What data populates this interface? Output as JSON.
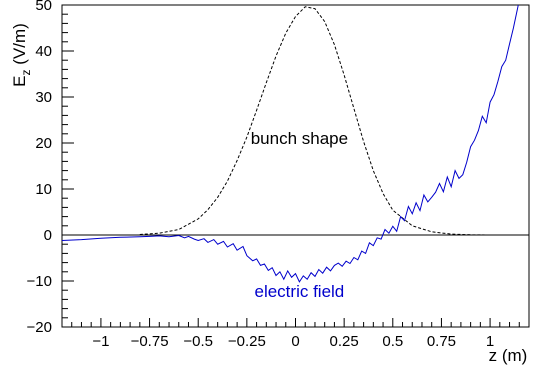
{
  "chart_data": {
    "type": "line",
    "title": "",
    "xlabel": "z (m)",
    "ylabel": {
      "base": "E",
      "subscript": "z",
      "unit": " (V/m)"
    },
    "xlim": [
      -1.2,
      1.2
    ],
    "ylim": [
      -20,
      50
    ],
    "x_ticks": [
      {
        "value": -1,
        "label": "−1"
      },
      {
        "value": -0.75,
        "label": "−0.75"
      },
      {
        "value": -0.5,
        "label": "−0.5"
      },
      {
        "value": -0.25,
        "label": "−0.25"
      },
      {
        "value": 0,
        "label": "0"
      },
      {
        "value": 0.25,
        "label": "0.25"
      },
      {
        "value": 0.5,
        "label": "0.5"
      },
      {
        "value": 0.75,
        "label": "0.75"
      },
      {
        "value": 1,
        "label": "1"
      }
    ],
    "y_ticks": [
      {
        "value": -20,
        "label": "−20"
      },
      {
        "value": -10,
        "label": "−10"
      },
      {
        "value": 0,
        "label": "0"
      },
      {
        "value": 10,
        "label": "10"
      },
      {
        "value": 20,
        "label": "20"
      },
      {
        "value": 30,
        "label": "30"
      },
      {
        "value": 40,
        "label": "40"
      },
      {
        "value": 50,
        "label": "50"
      }
    ],
    "grid": false,
    "zero_line": 0,
    "annotations": [
      {
        "text": "bunch shape",
        "x": 0.02,
        "y": 19.8,
        "color": "#000000"
      },
      {
        "text": "electric field",
        "x": 0.02,
        "y": -13.5,
        "color": "#0000cc"
      }
    ],
    "series": [
      {
        "label": "bunch shape",
        "color": "#000000",
        "dash": "3,2",
        "x": [
          -0.8,
          -0.7,
          -0.6,
          -0.5,
          -0.45,
          -0.4,
          -0.35,
          -0.3,
          -0.25,
          -0.2,
          -0.15,
          -0.1,
          -0.05,
          0,
          0.05,
          0.1,
          0.15,
          0.2,
          0.25,
          0.3,
          0.35,
          0.4,
          0.45,
          0.5,
          0.6,
          0.7,
          0.8,
          0.9,
          1.0
        ],
        "y": [
          0.1,
          0.4,
          1.2,
          3.5,
          5.5,
          8.2,
          11.7,
          16.2,
          21.3,
          27.1,
          33.1,
          38.9,
          43.9,
          47.5,
          49.6,
          49.2,
          46.4,
          41.4,
          34.8,
          27.5,
          20.3,
          14.0,
          9.0,
          5.4,
          2.0,
          0.7,
          0.2,
          0.05,
          0.0
        ]
      },
      {
        "label": "electric field",
        "color": "#0000cc",
        "dash": "",
        "x": [
          -1.2,
          -1.1,
          -1.0,
          -0.9,
          -0.8,
          -0.75,
          -0.7,
          -0.65,
          -0.6,
          -0.57,
          -0.55,
          -0.52,
          -0.5,
          -0.47,
          -0.45,
          -0.42,
          -0.4,
          -0.37,
          -0.35,
          -0.32,
          -0.3,
          -0.27,
          -0.25,
          -0.22,
          -0.2,
          -0.18,
          -0.16,
          -0.14,
          -0.12,
          -0.1,
          -0.08,
          -0.06,
          -0.04,
          -0.02,
          0,
          0.02,
          0.04,
          0.06,
          0.08,
          0.1,
          0.12,
          0.14,
          0.16,
          0.18,
          0.2,
          0.22,
          0.24,
          0.26,
          0.28,
          0.3,
          0.32,
          0.34,
          0.36,
          0.38,
          0.4,
          0.42,
          0.44,
          0.46,
          0.48,
          0.5,
          0.52,
          0.54,
          0.56,
          0.58,
          0.6,
          0.62,
          0.64,
          0.66,
          0.68,
          0.7,
          0.72,
          0.74,
          0.76,
          0.78,
          0.8,
          0.82,
          0.84,
          0.86,
          0.88,
          0.9,
          0.92,
          0.94,
          0.96,
          0.98,
          1.0,
          1.02,
          1.04,
          1.06,
          1.08,
          1.1,
          1.12,
          1.14,
          1.16,
          1.18
        ],
        "y": [
          -1.2,
          -1.0,
          -0.7,
          -0.5,
          -0.4,
          -0.3,
          -0.2,
          -0.4,
          -0.1,
          -0.6,
          -0.3,
          -0.9,
          -1.2,
          -0.8,
          -1.6,
          -1.0,
          -2.0,
          -1.4,
          -2.6,
          -1.9,
          -3.3,
          -2.5,
          -4.5,
          -5.6,
          -5.2,
          -6.6,
          -6.3,
          -7.7,
          -7.1,
          -8.8,
          -8.0,
          -9.6,
          -7.8,
          -9.2,
          -8.4,
          -10.2,
          -8.9,
          -9.6,
          -8.2,
          -9.0,
          -7.5,
          -8.3,
          -7.0,
          -7.8,
          -6.6,
          -6.1,
          -6.8,
          -5.7,
          -6.2,
          -4.9,
          -5.4,
          -3.5,
          -4.0,
          -1.7,
          -2.3,
          -0.6,
          -0.9,
          1.2,
          0.4,
          1.9,
          0.8,
          4.0,
          3.1,
          6.2,
          4.6,
          7.0,
          5.3,
          8.7,
          7.2,
          8.2,
          9.3,
          11.2,
          9.4,
          12.6,
          10.5,
          14.0,
          12.3,
          13.1,
          15.8,
          19.2,
          20.6,
          22.7,
          25.8,
          24.4,
          28.9,
          30.5,
          33.4,
          36.6,
          38.0,
          41.5,
          45.0,
          49.0,
          53.0,
          56.0
        ]
      }
    ]
  }
}
